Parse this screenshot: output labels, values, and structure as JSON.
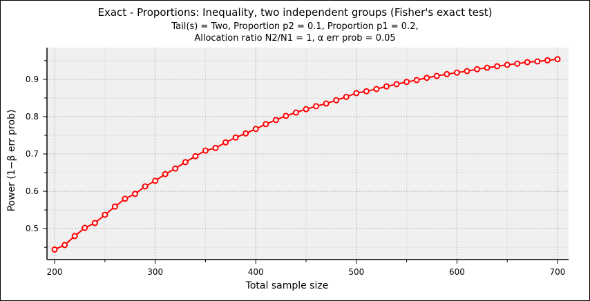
{
  "chart_data": {
    "type": "line",
    "title": "Exact - Proportions: Inequality, two independent groups (Fisher's exact test)",
    "subtitle_line1": "Tail(s) = Two, Proportion p2 = 0.1, Proportion p1 = 0.2,",
    "subtitle_line2": "Allocation ratio N2/N1 = 1, α err prob = 0.05",
    "xlabel": "Total sample size",
    "ylabel": "Power (1−β err prob)",
    "xlim": [
      192.4,
      711
    ],
    "ylim": [
      0.417,
      1.033
    ],
    "xticks": [
      "200",
      "300",
      "400",
      "500",
      "600",
      "700"
    ],
    "yticks": [
      "0.5",
      "0.6",
      "0.7",
      "0.8",
      "0.9"
    ],
    "grid": true,
    "series": [
      {
        "name": "Power",
        "color": "#ff0000",
        "x": [
          200,
          210,
          220,
          230,
          240,
          250,
          260,
          270,
          280,
          290,
          300,
          310,
          320,
          330,
          340,
          350,
          360,
          370,
          380,
          390,
          400,
          410,
          420,
          430,
          440,
          450,
          460,
          470,
          480,
          490,
          500,
          510,
          520,
          530,
          540,
          550,
          560,
          570,
          580,
          590,
          600,
          610,
          620,
          630,
          640,
          650,
          660,
          670,
          680,
          690,
          700
        ],
        "y": [
          0.444,
          0.456,
          0.48,
          0.502,
          0.515,
          0.537,
          0.559,
          0.58,
          0.593,
          0.613,
          0.628,
          0.646,
          0.661,
          0.678,
          0.694,
          0.709,
          0.716,
          0.731,
          0.744,
          0.755,
          0.767,
          0.78,
          0.791,
          0.802,
          0.811,
          0.82,
          0.828,
          0.835,
          0.844,
          0.853,
          0.863,
          0.868,
          0.874,
          0.881,
          0.887,
          0.893,
          0.898,
          0.904,
          0.909,
          0.914,
          0.918,
          0.922,
          0.927,
          0.931,
          0.935,
          0.939,
          0.942,
          0.946,
          0.948,
          0.951,
          0.954
        ]
      }
    ]
  }
}
